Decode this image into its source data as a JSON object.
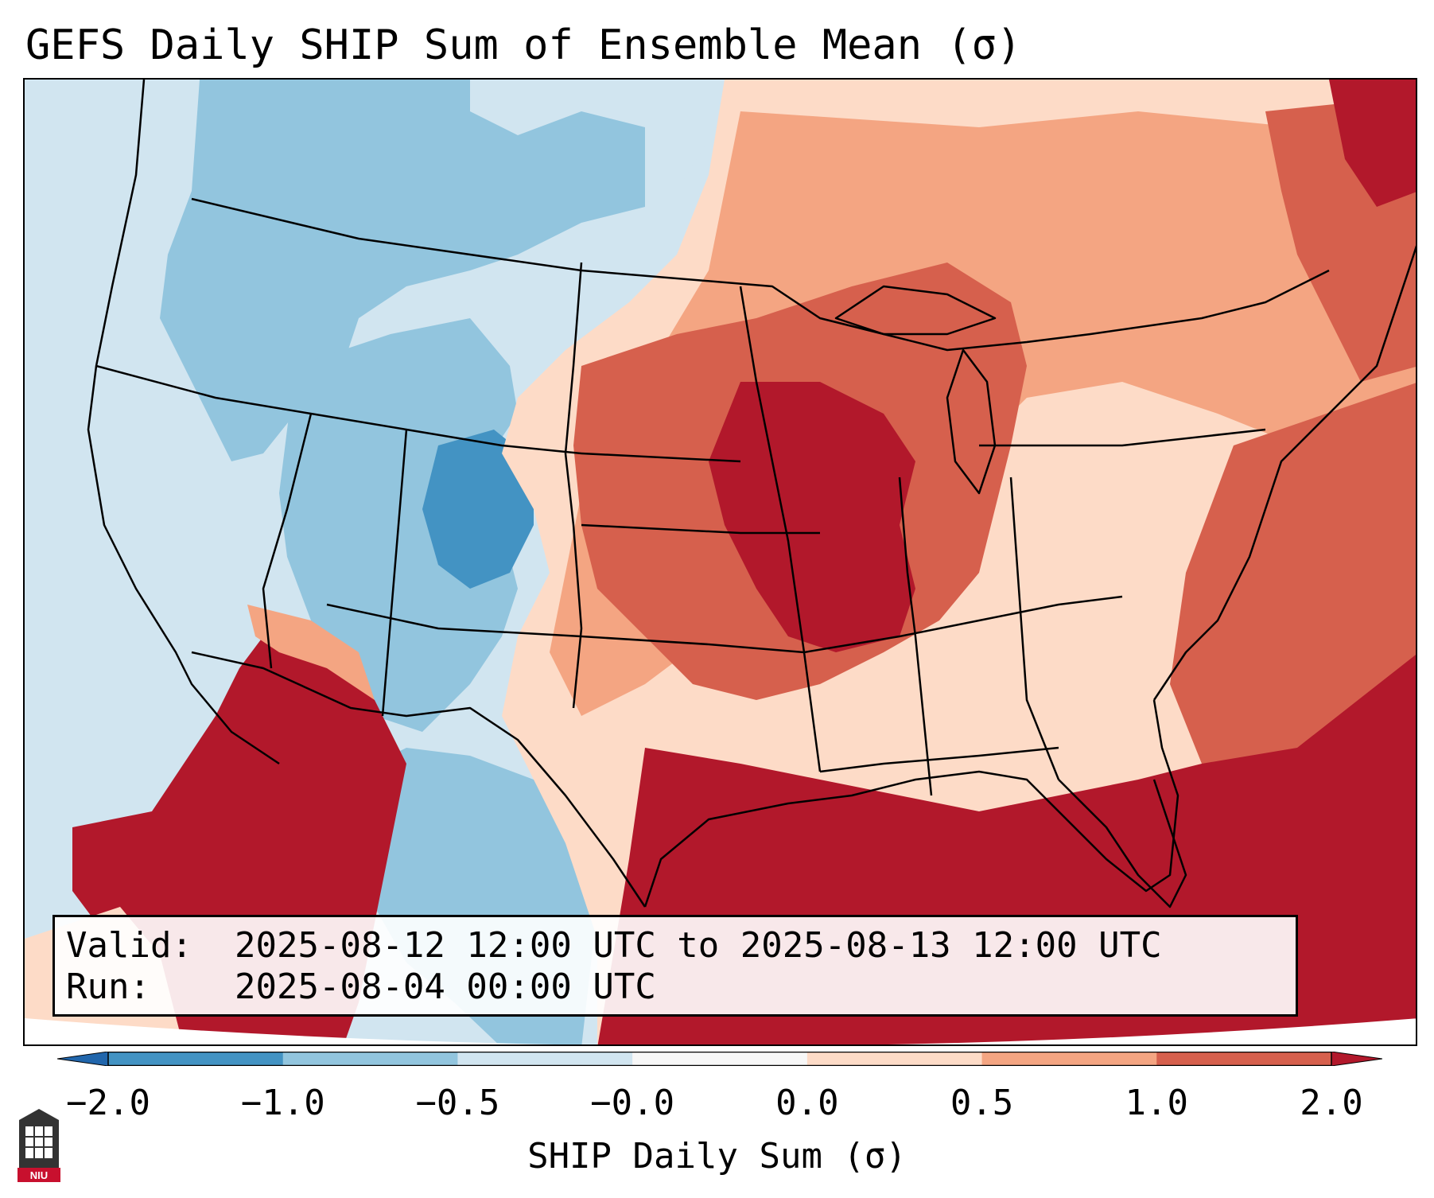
{
  "title": "GEFS Daily SHIP Sum of Ensemble Mean (σ)",
  "info": {
    "valid_label": "Valid:",
    "valid_value": "2025-08-12 12:00 UTC to 2025-08-13 12:00 UTC",
    "run_label": "Run:",
    "run_value": "2025-08-04 00:00 UTC"
  },
  "colorbar": {
    "label": "SHIP Daily Sum (σ)",
    "ticks": [
      "−2.0",
      "−1.0",
      "−0.5",
      "−0.0",
      "0.0",
      "0.5",
      "1.0",
      "2.0"
    ],
    "bins": [
      {
        "from": -2.0,
        "to": -1.0,
        "color": "#4393c3"
      },
      {
        "from": -1.0,
        "to": -0.5,
        "color": "#92c5de"
      },
      {
        "from": -0.5,
        "to": -0.0,
        "color": "#d1e5f0"
      },
      {
        "from": -0.0,
        "to": 0.0,
        "color": "#f7f7f7"
      },
      {
        "from": 0.0,
        "to": 0.5,
        "color": "#fddbc7"
      },
      {
        "from": 0.5,
        "to": 1.0,
        "color": "#f4a582"
      },
      {
        "from": 1.0,
        "to": 2.0,
        "color": "#d6604d"
      }
    ],
    "under_color": "#2166ac",
    "over_color": "#b2182b"
  },
  "colors": {
    "strong_negative": "#4393c3",
    "negative": "#92c5de",
    "weak_negative": "#d1e5f0",
    "neutral": "#f7f7f7",
    "weak_positive": "#fddbc7",
    "positive": "#f4a582",
    "strong_positive": "#d6604d",
    "extreme_positive": "#b2182b"
  },
  "logo": {
    "text": "NIU",
    "name": "niu-logo"
  }
}
